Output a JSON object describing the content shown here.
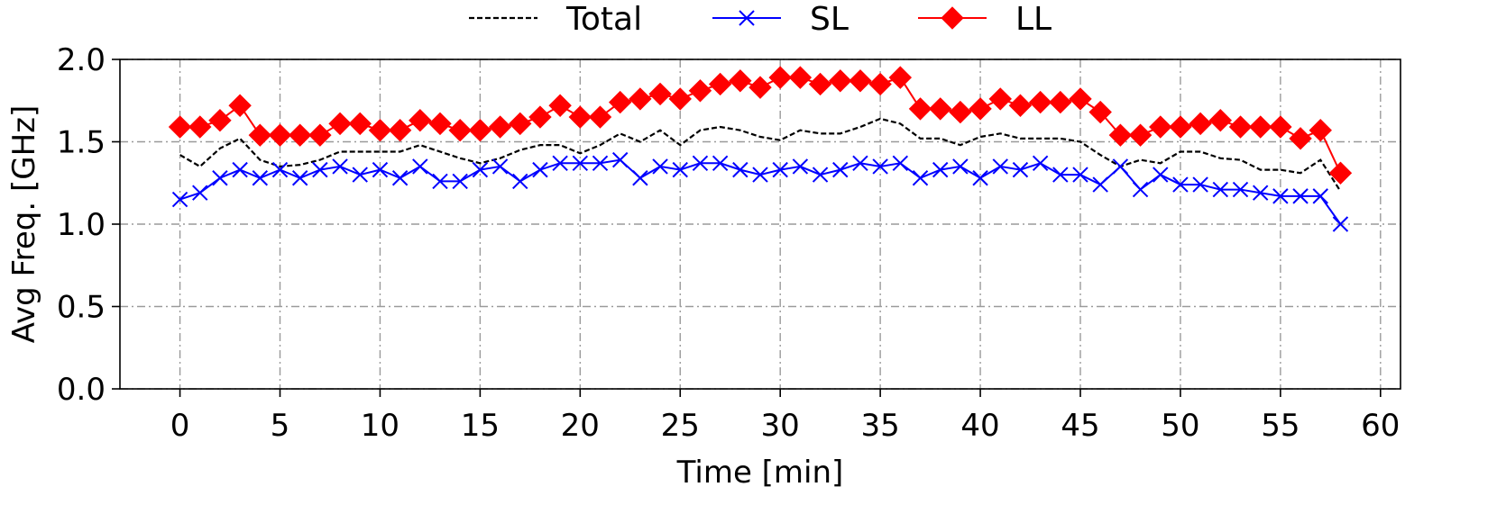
{
  "chart_data": {
    "type": "line",
    "title": "",
    "xlabel": "Time [min]",
    "ylabel": "Avg Freq. [GHz]",
    "xlim": [
      -3,
      61
    ],
    "ylim": [
      0,
      2.0
    ],
    "xticks": [
      0,
      5,
      10,
      15,
      20,
      25,
      30,
      35,
      40,
      45,
      50,
      55,
      60
    ],
    "yticks": [
      0.0,
      0.5,
      1.0,
      1.5,
      2.0
    ],
    "xtick_labels": [
      "0",
      "5",
      "10",
      "15",
      "20",
      "25",
      "30",
      "35",
      "40",
      "45",
      "50",
      "55",
      "60"
    ],
    "ytick_labels": [
      "0.0",
      "0.5",
      "1.0",
      "1.5",
      "2.0"
    ],
    "grid": true,
    "legend_position": "top-center",
    "x": [
      0,
      1,
      2,
      3,
      4,
      5,
      6,
      7,
      8,
      9,
      10,
      11,
      12,
      13,
      14,
      15,
      16,
      17,
      18,
      19,
      20,
      21,
      22,
      23,
      24,
      25,
      26,
      27,
      28,
      29,
      30,
      31,
      32,
      33,
      34,
      35,
      36,
      37,
      38,
      39,
      40,
      41,
      42,
      43,
      44,
      45,
      46,
      47,
      48,
      49,
      50,
      51,
      52,
      53,
      54,
      55,
      56,
      57,
      58
    ],
    "series": [
      {
        "name": "Total",
        "color": "#000000",
        "style": "dashed",
        "marker": "none",
        "values": [
          1.42,
          1.35,
          1.46,
          1.52,
          1.39,
          1.35,
          1.36,
          1.39,
          1.44,
          1.44,
          1.44,
          1.44,
          1.48,
          1.44,
          1.4,
          1.37,
          1.4,
          1.45,
          1.48,
          1.48,
          1.43,
          1.48,
          1.55,
          1.5,
          1.57,
          1.48,
          1.57,
          1.59,
          1.57,
          1.53,
          1.51,
          1.57,
          1.55,
          1.55,
          1.59,
          1.64,
          1.61,
          1.52,
          1.52,
          1.48,
          1.53,
          1.55,
          1.52,
          1.52,
          1.52,
          1.5,
          1.42,
          1.35,
          1.39,
          1.37,
          1.44,
          1.44,
          1.4,
          1.39,
          1.33,
          1.33,
          1.31,
          1.39,
          1.2
        ]
      },
      {
        "name": "SL",
        "color": "#0000ff",
        "style": "solid",
        "marker": "x",
        "values": [
          1.15,
          1.19,
          1.28,
          1.33,
          1.28,
          1.33,
          1.28,
          1.33,
          1.35,
          1.3,
          1.33,
          1.28,
          1.35,
          1.26,
          1.26,
          1.33,
          1.35,
          1.26,
          1.33,
          1.37,
          1.37,
          1.37,
          1.39,
          1.28,
          1.35,
          1.33,
          1.37,
          1.37,
          1.33,
          1.3,
          1.33,
          1.35,
          1.3,
          1.33,
          1.37,
          1.35,
          1.37,
          1.28,
          1.33,
          1.35,
          1.28,
          1.35,
          1.33,
          1.37,
          1.3,
          1.3,
          1.24,
          1.35,
          1.21,
          1.3,
          1.24,
          1.24,
          1.21,
          1.21,
          1.19,
          1.17,
          1.17,
          1.17,
          1.0
        ]
      },
      {
        "name": "LL",
        "color": "#ff0000",
        "style": "solid",
        "marker": "diamond",
        "values": [
          1.59,
          1.59,
          1.63,
          1.72,
          1.54,
          1.54,
          1.54,
          1.54,
          1.61,
          1.61,
          1.57,
          1.57,
          1.63,
          1.61,
          1.57,
          1.57,
          1.59,
          1.61,
          1.65,
          1.72,
          1.65,
          1.65,
          1.74,
          1.76,
          1.79,
          1.76,
          1.81,
          1.85,
          1.87,
          1.83,
          1.89,
          1.89,
          1.85,
          1.87,
          1.87,
          1.85,
          1.89,
          1.7,
          1.7,
          1.68,
          1.7,
          1.76,
          1.72,
          1.74,
          1.74,
          1.76,
          1.68,
          1.54,
          1.54,
          1.59,
          1.59,
          1.61,
          1.63,
          1.59,
          1.59,
          1.59,
          1.52,
          1.57,
          1.31
        ]
      }
    ]
  }
}
